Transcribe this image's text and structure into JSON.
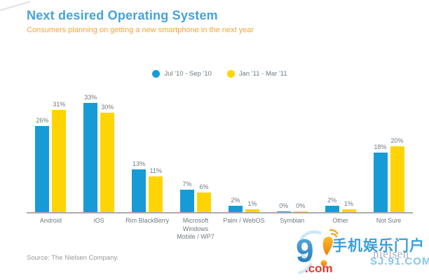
{
  "header": {
    "title": "Next desired Operating System",
    "subtitle": "Consumers planning on getting a new smartphone in the next year"
  },
  "chart_data": {
    "type": "bar",
    "categories": [
      "Android",
      "iOS",
      "Rim BlackBerry",
      "Microsoft Windows Mobile / WP7",
      "Palm / WebOS",
      "Symbian",
      "Other",
      "Not Sure"
    ],
    "series": [
      {
        "name": "Jul '10 - Sep '10",
        "color": "#179bd7",
        "values": [
          26,
          33,
          13,
          7,
          2,
          0,
          2,
          18
        ]
      },
      {
        "name": "Jan '11 - Mar '11",
        "color": "#ffd403",
        "values": [
          31,
          30,
          11,
          6,
          1,
          0,
          1,
          20
        ]
      }
    ],
    "value_suffix": "%",
    "ylim": [
      0,
      35
    ],
    "grid": false,
    "legend_position": "top-center",
    "xlabel": "",
    "ylabel": ""
  },
  "footer": {
    "source": "Source: The Nielsen Company."
  },
  "watermark": {
    "logo_numeral": "9",
    "logo_dotcom": ".com",
    "site_name_cn": "手机娱乐门户",
    "nielsen_text": "nielsen",
    "site_url": "SJ.91.COM"
  },
  "ui_colors": {
    "title": "#45a3d8",
    "subtitle": "#f5a437",
    "axis": "#a8acaf",
    "label_gray": "#6f7a82"
  }
}
